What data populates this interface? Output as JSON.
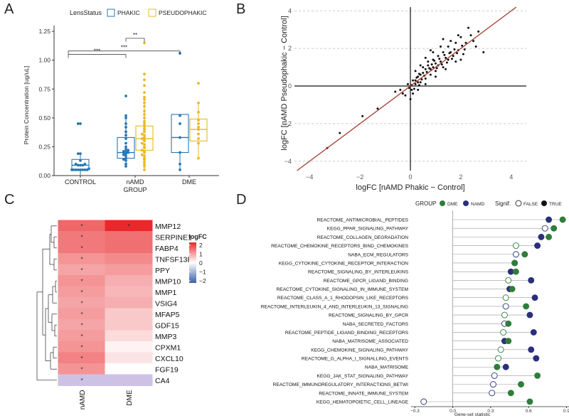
{
  "panels": {
    "A": "A",
    "B": "B",
    "C": "C",
    "D": "D"
  },
  "chart_data": [
    {
      "type": "boxplot",
      "panel": "A",
      "legend_title": "LensStatus",
      "legend": [
        "PHAKIC",
        "PSEUDOPHAKIC"
      ],
      "ylabel": "Protein Concentration [ug/uL]",
      "xlabel": "GROUP",
      "yticks": [
        "0.00",
        "0.25",
        "0.50",
        "0.75",
        "1.00",
        "1.25"
      ],
      "categories": [
        "CONTROL",
        "nAMD",
        "DME"
      ],
      "ylim": [
        0,
        1.25
      ],
      "series": [
        {
          "name": "PHAKIC",
          "color": "#2878b5",
          "boxes": [
            {
              "cat": "CONTROL",
              "q1": 0.05,
              "med": 0.09,
              "q3": 0.14,
              "lo": 0.0,
              "hi": 0.2,
              "points": [
                0.05,
                0.05,
                0.05,
                0.05,
                0.05,
                0.05,
                0.05,
                0.05,
                0.06,
                0.09,
                0.09,
                0.09,
                0.1,
                0.1,
                0.13,
                0.19,
                0.19,
                0.45,
                0.45
              ]
            },
            {
              "cat": "nAMD",
              "q1": 0.15,
              "med": 0.2,
              "q3": 0.33,
              "lo": 0.07,
              "hi": 0.52,
              "points": [
                0.08,
                0.1,
                0.13,
                0.14,
                0.15,
                0.17,
                0.18,
                0.19,
                0.2,
                0.2,
                0.21,
                0.21,
                0.22,
                0.23,
                0.25,
                0.28,
                0.32,
                0.35,
                0.38,
                0.42,
                0.45,
                0.5,
                0.52,
                0.69
              ]
            },
            {
              "cat": "DME",
              "q1": 0.2,
              "med": 0.33,
              "q3": 0.53,
              "lo": 0.05,
              "hi": 0.53,
              "points": [
                0.05,
                0.1,
                0.2,
                0.33,
                0.45,
                0.52,
                1.06
              ]
            }
          ]
        },
        {
          "name": "PSEUDOPHAKIC",
          "color": "#e8b923",
          "boxes": [
            {
              "cat": "nAMD",
              "q1": 0.22,
              "med": 0.32,
              "q3": 0.43,
              "lo": 0.05,
              "hi": 0.68,
              "points": [
                0.05,
                0.08,
                0.1,
                0.12,
                0.14,
                0.15,
                0.17,
                0.18,
                0.2,
                0.21,
                0.22,
                0.24,
                0.25,
                0.27,
                0.28,
                0.3,
                0.31,
                0.32,
                0.33,
                0.35,
                0.36,
                0.38,
                0.4,
                0.41,
                0.43,
                0.45,
                0.47,
                0.5,
                0.53,
                0.56,
                0.6,
                0.63,
                0.66,
                0.68,
                0.72,
                0.78,
                0.83,
                0.88,
                1.15
              ]
            },
            {
              "cat": "DME",
              "q1": 0.3,
              "med": 0.4,
              "q3": 0.49,
              "lo": 0.15,
              "hi": 0.63,
              "points": [
                0.15,
                0.28,
                0.32,
                0.36,
                0.4,
                0.42,
                0.45,
                0.48,
                0.55,
                0.63,
                0.8
              ]
            }
          ]
        }
      ],
      "significance": [
        {
          "label": "**",
          "from": "nAMD-PHAKIC",
          "to": "nAMD-PSEUDOPHAKIC",
          "y": 1.19
        },
        {
          "label": "***",
          "from": "CONTROL",
          "to": "nAMD-PHAKIC",
          "y": 1.05
        },
        {
          "label": "***",
          "from": "CONTROL",
          "to": "DME-PHAKIC",
          "y": 1.08
        }
      ]
    },
    {
      "type": "scatter",
      "panel": "B",
      "xlabel": "logFC [nAMD Phakic − Control]",
      "ylabel": "logFC [nAMD Pseudophakic − Control]",
      "xlim": [
        -4.6,
        4.6
      ],
      "ylim": [
        -4.5,
        4.2
      ],
      "xticks": [
        -4,
        -2,
        0,
        2,
        4
      ],
      "yticks": [
        -4,
        -2,
        0,
        2,
        4
      ],
      "tick_labels_x": [
        "−4",
        "−2",
        "0",
        "2",
        "4"
      ],
      "tick_labels_y": [
        "−4",
        "−2",
        "0",
        "2",
        "4"
      ],
      "fit_line": {
        "slope": 1.0,
        "intercept": 0.0,
        "color": "#a33a2c"
      },
      "points": [
        [
          -3.3,
          -3.3
        ],
        [
          -2.8,
          -2.5
        ],
        [
          -1.9,
          -1.6
        ],
        [
          -1.3,
          -1.2
        ],
        [
          -0.6,
          -0.3
        ],
        [
          -0.2,
          -0.5
        ],
        [
          -0.1,
          0.1
        ],
        [
          0.1,
          -0.4
        ],
        [
          0.2,
          0.3
        ],
        [
          0.3,
          0.5
        ],
        [
          0.4,
          0.6
        ],
        [
          0.5,
          0.7
        ],
        [
          0.6,
          0.9
        ],
        [
          0.7,
          1.1
        ],
        [
          0.8,
          0.9
        ],
        [
          0.9,
          1.4
        ],
        [
          1.0,
          1.2
        ],
        [
          1.1,
          1.6
        ],
        [
          1.2,
          1.3
        ],
        [
          1.3,
          1.8
        ],
        [
          1.4,
          1.5
        ],
        [
          1.5,
          2.1
        ],
        [
          1.6,
          1.8
        ],
        [
          1.8,
          2.3
        ],
        [
          2.0,
          2.6
        ],
        [
          2.2,
          2.3
        ],
        [
          2.3,
          3.1
        ],
        [
          2.5,
          2.4
        ],
        [
          2.9,
          1.8
        ],
        [
          0.4,
          0.2
        ],
        [
          0.6,
          0.4
        ],
        [
          0.8,
          0.6
        ],
        [
          1.0,
          0.8
        ],
        [
          0.5,
          1.0
        ],
        [
          0.7,
          1.3
        ],
        [
          0.9,
          1.0
        ],
        [
          1.1,
          1.1
        ],
        [
          1.3,
          1.0
        ],
        [
          1.5,
          1.4
        ],
        [
          1.7,
          1.6
        ],
        [
          1.9,
          1.9
        ],
        [
          0.2,
          0.1
        ],
        [
          0.3,
          0.2
        ],
        [
          0.45,
          0.35
        ],
        [
          0.55,
          0.55
        ],
        [
          0.65,
          0.75
        ],
        [
          0.75,
          0.95
        ],
        [
          0.85,
          1.15
        ],
        [
          0.95,
          1.35
        ],
        [
          1.05,
          0.95
        ],
        [
          1.15,
          1.45
        ],
        [
          1.25,
          1.15
        ],
        [
          1.35,
          1.65
        ],
        [
          1.45,
          1.25
        ],
        [
          1.55,
          1.75
        ],
        [
          1.65,
          1.45
        ],
        [
          1.75,
          1.95
        ],
        [
          1.85,
          1.75
        ],
        [
          2.05,
          2.15
        ],
        [
          2.15,
          1.95
        ],
        [
          0.1,
          0.3
        ],
        [
          0.25,
          0.45
        ],
        [
          0.35,
          0.65
        ],
        [
          0.15,
          -0.15
        ],
        [
          0.05,
          -0.2
        ],
        [
          -0.05,
          -0.1
        ],
        [
          0.0,
          -0.7
        ],
        [
          0.3,
          -0.2
        ],
        [
          0.6,
          0.1
        ],
        [
          1.0,
          0.5
        ],
        [
          1.4,
          0.9
        ],
        [
          1.8,
          1.3
        ],
        [
          2.1,
          1.7
        ],
        [
          0.2,
          0.8
        ],
        [
          0.4,
          1.1
        ],
        [
          0.6,
          1.5
        ],
        [
          0.9,
          1.8
        ],
        [
          1.2,
          2.1
        ],
        [
          1.6,
          2.4
        ],
        [
          2.4,
          2.7
        ],
        [
          2.6,
          2.1
        ],
        [
          2.0,
          1.4
        ],
        [
          -0.4,
          -0.2
        ],
        [
          -0.3,
          -0.4
        ],
        [
          0.05,
          0.05
        ],
        [
          0.35,
          0.05
        ],
        [
          1.3,
          2.5
        ],
        [
          2.7,
          2.9
        ],
        [
          0.8,
          1.9
        ],
        [
          1.9,
          2.7
        ]
      ]
    },
    {
      "type": "heatmap",
      "panel": "C",
      "columns": [
        "nAMD",
        "DME"
      ],
      "rows": [
        "MMP12",
        "SERPINE1",
        "FABP4",
        "TNFSF13B",
        "PPY",
        "MMP10",
        "MMP1",
        "VSIG4",
        "MFAP5",
        "GDF15",
        "MMP3",
        "CPXM1",
        "CXCL10",
        "FGF19",
        "CA4"
      ],
      "values": [
        [
          1.7,
          2.4
        ],
        [
          1.5,
          1.6
        ],
        [
          1.5,
          1.6
        ],
        [
          1.2,
          1.3
        ],
        [
          1.0,
          1.1
        ],
        [
          1.2,
          0.9
        ],
        [
          1.1,
          0.8
        ],
        [
          1.0,
          0.9
        ],
        [
          1.1,
          0.6
        ],
        [
          1.0,
          0.6
        ],
        [
          1.1,
          0.4
        ],
        [
          1.2,
          0.15
        ],
        [
          1.4,
          0.3
        ],
        [
          1.2,
          0.0
        ],
        [
          -0.7,
          -0.7
        ]
      ],
      "stars": [
        [
          "*",
          "*"
        ],
        [
          "*",
          ""
        ],
        [
          "*",
          ""
        ],
        [
          "*",
          ""
        ],
        [
          "*",
          ""
        ],
        [
          "*",
          ""
        ],
        [
          "*",
          ""
        ],
        [
          "*",
          ""
        ],
        [
          "*",
          ""
        ],
        [
          "*",
          ""
        ],
        [
          "*",
          ""
        ],
        [
          "*",
          ""
        ],
        [
          "*",
          ""
        ],
        [
          "*",
          ""
        ],
        [
          "*",
          ""
        ]
      ],
      "legend_title": "logFC",
      "legend_ticks": [
        "2",
        "1",
        "0",
        "−1",
        "−2"
      ],
      "colors": {
        "high": "#e8282b",
        "mid": "#ffffff",
        "low": "#3a5fa8"
      }
    },
    {
      "type": "dot",
      "panel": "D",
      "legend": {
        "group_title": "GROUP",
        "groups": [
          "DME",
          "NAMD"
        ],
        "signif_title": "Signif.",
        "signif": [
          "FALSE",
          "TRUE"
        ]
      },
      "colors": {
        "DME": "#2e7d3a",
        "NAMD": "#2a2f7a"
      },
      "xlabel": "Gene-set statistic",
      "xticks": [
        -0.3,
        0.0,
        0.3,
        0.6,
        0.9
      ],
      "tick_labels": [
        "−0.3",
        "0.0",
        "0.3",
        "0.6",
        "0.9"
      ],
      "xlim": [
        -0.33,
        0.92
      ],
      "pathways": [
        {
          "name": "REACTOME_ANTIMICROBIAL_PEPTIDES",
          "dme": 0.87,
          "dme_sig": true,
          "namd": 0.76,
          "namd_sig": true
        },
        {
          "name": "KEGG_PPAR_SIGNALING_PATHWAY",
          "dme": 0.8,
          "dme_sig": true,
          "namd": 0.73,
          "namd_sig": false
        },
        {
          "name": "REACTOME_COLLAGEN_DEGRADATION",
          "dme": 0.76,
          "dme_sig": true,
          "namd": 0.7,
          "namd_sig": true
        },
        {
          "name": "REACTOME_CHEMOKINE_RECEPTORS_BIND_CHEMOKINES",
          "dme": 0.5,
          "dme_sig": false,
          "namd": 0.67,
          "namd_sig": true
        },
        {
          "name": "NABA_ECM_REGULATORS",
          "dme": 0.57,
          "dme_sig": true,
          "namd": 0.5,
          "namd_sig": false
        },
        {
          "name": "KEGG_CYTOKINE_CYTOKINE_RECEPTOR_INTERACTION",
          "dme": 0.49,
          "dme_sig": true,
          "namd": 0.49,
          "namd_sig": true
        },
        {
          "name": "REACTOME_SIGNALING_BY_INTERLEUKINS",
          "dme": 0.5,
          "dme_sig": true,
          "namd": 0.46,
          "namd_sig": true
        },
        {
          "name": "REACTOME_GPCR_LIGAND_BINDING",
          "dme": 0.44,
          "dme_sig": false,
          "namd": 0.62,
          "namd_sig": true
        },
        {
          "name": "REACTOME_CYTOKINE_SIGNALING_IN_IMMUNE_SYSTEM",
          "dme": 0.47,
          "dme_sig": true,
          "namd": 0.45,
          "namd_sig": true
        },
        {
          "name": "REACTOME_CLASS_A_1_RHODOPSIN_LIKE_RECEPTORS",
          "dme": 0.42,
          "dme_sig": false,
          "namd": 0.65,
          "namd_sig": true
        },
        {
          "name": "REACTOME_INTERLEUKIN_4_AND_INTERLEUKIN_13_SIGNALING",
          "dme": 0.58,
          "dme_sig": true,
          "namd": 0.42,
          "namd_sig": false
        },
        {
          "name": "REACTOME_SIGNALING_BY_GPCR",
          "dme": 0.41,
          "dme_sig": false,
          "namd": 0.61,
          "namd_sig": true
        },
        {
          "name": "NABA_SECRETED_FACTORS",
          "dme": 0.44,
          "dme_sig": true,
          "namd": 0.41,
          "namd_sig": false
        },
        {
          "name": "REACTOME_PEPTIDE_LIGAND_BINDING_RECEPTORS",
          "dme": 0.4,
          "dme_sig": false,
          "namd": 0.64,
          "namd_sig": true
        },
        {
          "name": "NABA_MATRISOME_ASSOCIATED",
          "dme": 0.44,
          "dme_sig": true,
          "namd": 0.41,
          "namd_sig": true
        },
        {
          "name": "KEGG_CHEMOKINE_SIGNALING_PATHWAY",
          "dme": 0.38,
          "dme_sig": false,
          "namd": 0.62,
          "namd_sig": true
        },
        {
          "name": "REACTOME_G_ALPHA_I_SIGNALLING_EVENTS",
          "dme": 0.36,
          "dme_sig": false,
          "namd": 0.66,
          "namd_sig": true
        },
        {
          "name": "NABA_MATRISOME",
          "dme": 0.35,
          "dme_sig": true,
          "namd": 0.42,
          "namd_sig": true
        },
        {
          "name": "KEGG_JAK_STAT_SIGNALING_PATHWAY",
          "dme": 0.67,
          "dme_sig": true,
          "namd": 0.33,
          "namd_sig": false
        },
        {
          "name": "REACTOME_IMMUNOREGULATORY_INTERACTIONS_BETWI",
          "dme": 0.54,
          "dme_sig": true,
          "namd": 0.32,
          "namd_sig": false
        },
        {
          "name": "REACTOME_INNATE_IMMUNE_SYSTEM",
          "dme": 0.46,
          "dme_sig": true,
          "namd": 0.31,
          "namd_sig": false
        },
        {
          "name": "KEGG_HEMATOPOIETIC_CELL_LINEAGE",
          "dme": 0.61,
          "dme_sig": true,
          "namd": -0.23,
          "namd_sig": false
        }
      ]
    }
  ]
}
